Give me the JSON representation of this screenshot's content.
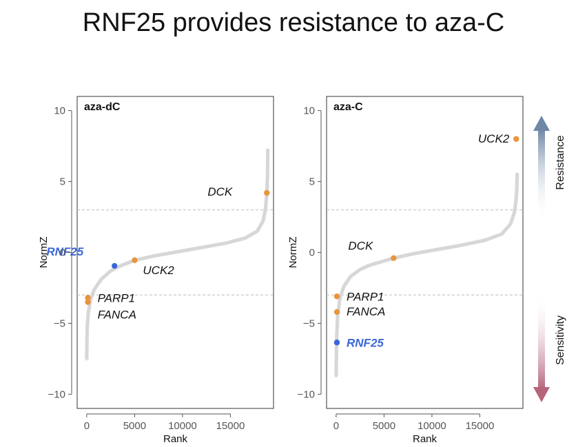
{
  "title": "RNF25 provides resistance to aza-C",
  "scale": {
    "top_label": "Resistance",
    "bottom_label": "Sensitivity",
    "top_color": "#6f87a6",
    "bottom_color": "#b5647b"
  },
  "chart_data": [
    {
      "type": "scatter",
      "panel_label": "aza-dC",
      "xlabel": "Rank",
      "ylabel": "NormZ",
      "xlim": [
        -1000,
        19500
      ],
      "ylim": [
        -11,
        11
      ],
      "x_ticks": [
        0,
        5000,
        10000,
        15000
      ],
      "y_ticks": [
        -10,
        -5,
        0,
        5,
        10
      ],
      "thresholds": [
        3,
        -3
      ],
      "curve": [
        [
          0,
          -7.5
        ],
        [
          20,
          -6.2
        ],
        [
          60,
          -5.2
        ],
        [
          150,
          -4.3
        ],
        [
          400,
          -3.3
        ],
        [
          800,
          -2.6
        ],
        [
          1500,
          -1.9
        ],
        [
          2500,
          -1.3
        ],
        [
          3500,
          -0.95
        ],
        [
          5000,
          -0.55
        ],
        [
          7000,
          -0.25
        ],
        [
          9500,
          0.05
        ],
        [
          12000,
          0.35
        ],
        [
          14500,
          0.65
        ],
        [
          16500,
          1.0
        ],
        [
          17800,
          1.5
        ],
        [
          18400,
          2.2
        ],
        [
          18650,
          3.0
        ],
        [
          18760,
          3.8
        ],
        [
          18830,
          4.6
        ],
        [
          18870,
          5.3
        ],
        [
          18900,
          7.2
        ]
      ],
      "highlights": [
        {
          "label": "DCK",
          "x": 18800,
          "y": 4.2,
          "color": "#e8953f",
          "label_side": "left",
          "label_dx": -50,
          "label_dy": 4
        },
        {
          "label": "RNF25",
          "x": 2900,
          "y": -0.95,
          "color": "#3b66d8",
          "label_side": "left",
          "label_dx": -45,
          "label_dy": -15
        },
        {
          "label": "UCK2",
          "x": 5000,
          "y": -0.55,
          "color": "#e8953f",
          "label_side": "right",
          "label_dx": 12,
          "label_dy": 20
        },
        {
          "label": "PARP1",
          "x": 120,
          "y": -3.2,
          "color": "#e8953f",
          "label_side": "right",
          "label_dx": 14,
          "label_dy": 6
        },
        {
          "label": "FANCA",
          "x": 120,
          "y": -3.5,
          "color": "#e8953f",
          "label_side": "right",
          "label_dx": 14,
          "label_dy": 24
        }
      ]
    },
    {
      "type": "scatter",
      "panel_label": "aza-C",
      "xlabel": "Rank",
      "ylabel": "NormZ",
      "xlim": [
        -1000,
        19500
      ],
      "ylim": [
        -11,
        11
      ],
      "x_ticks": [
        0,
        5000,
        10000,
        15000
      ],
      "y_ticks": [
        -10,
        -5,
        0,
        5,
        10
      ],
      "thresholds": [
        3,
        -3
      ],
      "curve": [
        [
          0,
          -8.7
        ],
        [
          20,
          -7.5
        ],
        [
          60,
          -6.0
        ],
        [
          150,
          -4.5
        ],
        [
          400,
          -3.2
        ],
        [
          800,
          -2.4
        ],
        [
          1500,
          -1.7
        ],
        [
          2500,
          -1.2
        ],
        [
          3500,
          -0.9
        ],
        [
          5000,
          -0.6
        ],
        [
          6000,
          -0.4
        ],
        [
          8000,
          -0.1
        ],
        [
          10500,
          0.2
        ],
        [
          13000,
          0.5
        ],
        [
          15500,
          0.85
        ],
        [
          17300,
          1.3
        ],
        [
          18200,
          2.0
        ],
        [
          18600,
          2.8
        ],
        [
          18750,
          3.5
        ],
        [
          18850,
          4.3
        ],
        [
          18900,
          5.5
        ]
      ],
      "highlights": [
        {
          "label": "UCK2",
          "x": 18800,
          "y": 8.0,
          "color": "#e8953f",
          "label_side": "left",
          "label_dx": -10,
          "label_dy": 5
        },
        {
          "label": "DCK",
          "x": 6000,
          "y": -0.4,
          "color": "#e8953f",
          "label_side": "left",
          "label_dx": -30,
          "label_dy": -12
        },
        {
          "label": "PARP1",
          "x": 80,
          "y": -3.1,
          "color": "#e8953f",
          "label_side": "right",
          "label_dx": 14,
          "label_dy": 6
        },
        {
          "label": "FANCA",
          "x": 80,
          "y": -4.2,
          "color": "#e8953f",
          "label_side": "right",
          "label_dx": 14,
          "label_dy": 5
        },
        {
          "label": "RNF25",
          "x": 80,
          "y": -6.35,
          "color": "#3b66d8",
          "label_side": "right",
          "label_dx": 14,
          "label_dy": 6
        }
      ]
    }
  ]
}
